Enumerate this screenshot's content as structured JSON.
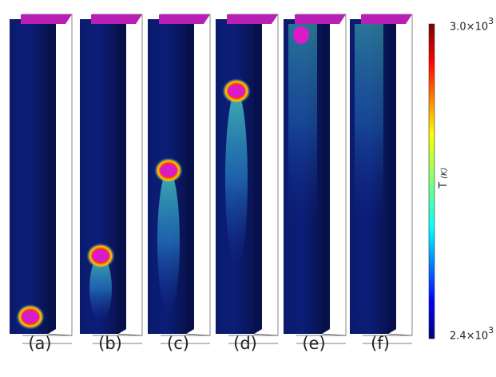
{
  "figure": {
    "panels": [
      {
        "id": "a",
        "label": "(a)",
        "bubble_height_fraction": 0.04
      },
      {
        "id": "b",
        "label": "(b)",
        "bubble_height_fraction": 0.24
      },
      {
        "id": "c",
        "label": "(c)",
        "bubble_height_fraction": 0.52
      },
      {
        "id": "d",
        "label": "(d)",
        "bubble_height_fraction": 0.78
      },
      {
        "id": "e",
        "label": "(e)",
        "bubble_height_fraction": 1.0
      },
      {
        "id": "f",
        "label": "(f)",
        "bubble_height_fraction": 1.0
      }
    ],
    "colorbar": {
      "title": "T",
      "unit": "(K)",
      "max_label_mantissa": "3.0×10",
      "max_label_exponent": "3",
      "min_label_mantissa": "2.4×10",
      "min_label_exponent": "3",
      "colormap": "jet"
    },
    "colors": {
      "background_field": "#0b1560",
      "bubble": "#d91cc8",
      "cap": "#b81fb4",
      "frame_line": "#555555"
    }
  }
}
